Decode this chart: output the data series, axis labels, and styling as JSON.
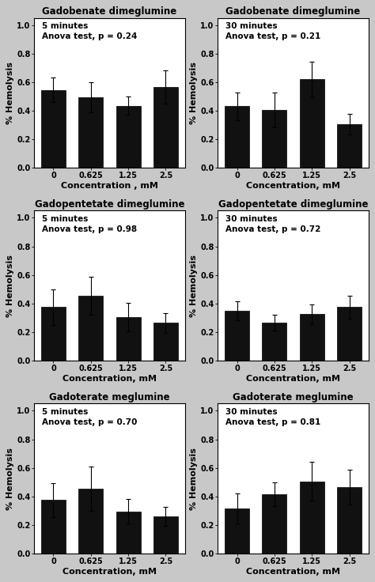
{
  "subplots": [
    {
      "title": "Gadobenate dimeglumine",
      "annotation": "5 minutes\nAnova test, p = 0.24",
      "xlabel": "Concentration , mM",
      "ylabel": "% Hemolysis",
      "categories": [
        "0",
        "0.625",
        "1.25",
        "2.5"
      ],
      "values": [
        0.545,
        0.495,
        0.435,
        0.565
      ],
      "errors": [
        0.085,
        0.105,
        0.065,
        0.115
      ],
      "ylim": [
        0.0,
        1.05
      ],
      "yticks": [
        0.0,
        0.2,
        0.4,
        0.6,
        0.8,
        1.0
      ]
    },
    {
      "title": "Gadobenate dimeglumine",
      "annotation": "30 minutes\nAnova test, p = 0.21",
      "xlabel": "Concentration, mM",
      "ylabel": "% Hemolysis",
      "categories": [
        "0",
        "0.625",
        "1.25",
        "2.5"
      ],
      "values": [
        0.43,
        0.405,
        0.62,
        0.305
      ],
      "errors": [
        0.095,
        0.12,
        0.125,
        0.07
      ],
      "ylim": [
        0.0,
        1.05
      ],
      "yticks": [
        0.0,
        0.2,
        0.4,
        0.6,
        0.8,
        1.0
      ]
    },
    {
      "title": "Gadopentetate dimeglumine",
      "annotation": "5 minutes\nAnova test, p = 0.98",
      "xlabel": "Concentration, mM",
      "ylabel": "% Hemolysis",
      "categories": [
        "0",
        "0.625",
        "1.25",
        "2.5"
      ],
      "values": [
        0.375,
        0.455,
        0.305,
        0.265
      ],
      "errors": [
        0.125,
        0.135,
        0.1,
        0.07
      ],
      "ylim": [
        0.0,
        1.05
      ],
      "yticks": [
        0.0,
        0.2,
        0.4,
        0.6,
        0.8,
        1.0
      ]
    },
    {
      "title": "Gadopentetate dimeglumine",
      "annotation": "30 minutes\nAnova test, p = 0.72",
      "xlabel": "Concentration, mM",
      "ylabel": "% Hemolysis",
      "categories": [
        "0",
        "0.625",
        "1.25",
        "2.5"
      ],
      "values": [
        0.35,
        0.265,
        0.325,
        0.375
      ],
      "errors": [
        0.065,
        0.055,
        0.07,
        0.08
      ],
      "ylim": [
        0.0,
        1.05
      ],
      "yticks": [
        0.0,
        0.2,
        0.4,
        0.6,
        0.8,
        1.0
      ]
    },
    {
      "title": "Gadoterate meglumine",
      "annotation": "5 minutes\nAnova test, p = 0.70",
      "xlabel": "Concentration, mM",
      "ylabel": "% Hemolysis",
      "categories": [
        "0",
        "0.625",
        "1.25",
        "2.5"
      ],
      "values": [
        0.375,
        0.455,
        0.295,
        0.26
      ],
      "errors": [
        0.12,
        0.155,
        0.085,
        0.065
      ],
      "ylim": [
        0.0,
        1.05
      ],
      "yticks": [
        0.0,
        0.2,
        0.4,
        0.6,
        0.8,
        1.0
      ]
    },
    {
      "title": "Gadoterate meglumine",
      "annotation": "30 minutes\nAnova test, p = 0.81",
      "xlabel": "Concentration, mM",
      "ylabel": "% Hemolysis",
      "categories": [
        "0",
        "0.625",
        "1.25",
        "2.5"
      ],
      "values": [
        0.315,
        0.415,
        0.505,
        0.465
      ],
      "errors": [
        0.105,
        0.085,
        0.135,
        0.12
      ],
      "ylim": [
        0.0,
        1.05
      ],
      "yticks": [
        0.0,
        0.2,
        0.4,
        0.6,
        0.8,
        1.0
      ]
    }
  ],
  "bar_color": "#111111",
  "bar_edgecolor": "#000000",
  "error_color": "#000000",
  "background_color": "#ffffff",
  "fig_background": "#c8c8c8",
  "title_fontsize": 8.5,
  "label_fontsize": 8,
  "tick_fontsize": 7,
  "annotation_fontsize": 7.5
}
